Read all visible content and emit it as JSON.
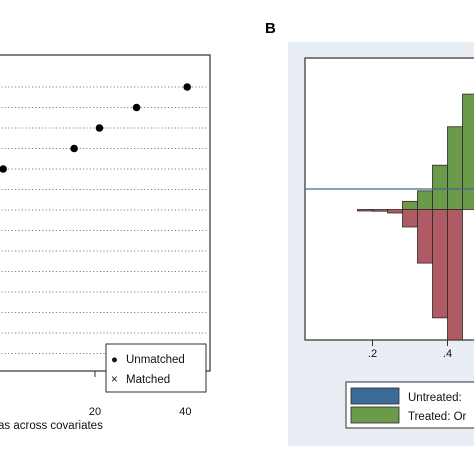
{
  "colors": {
    "outer_bg": "#e8eef3",
    "plot_bg": "#ffffff",
    "frame": "#2f2f2f",
    "dot": "#000000",
    "untreated": "#3d6b99",
    "treated": "#6a9a4a",
    "negative": "#b05a66"
  },
  "chart_data": [
    {
      "panel": "",
      "type": "scatter",
      "title": "",
      "xlabel": "as across covariates",
      "ylabel": "",
      "x_ticks": [
        20,
        40
      ],
      "x_tick_labels": [
        "20",
        "40"
      ],
      "xlim": [
        -1,
        45
      ],
      "rows_visible": 20,
      "grid": "dotted horizontal lines per covariate row",
      "series": [
        {
          "name": "Unmatched",
          "marker": "dot",
          "points": [
            {
              "row": 1,
              "x": 40.4
            },
            {
              "row": 2,
              "x": 29.2
            },
            {
              "row": 3,
              "x": 21.0
            },
            {
              "row": 4,
              "x": 15.4
            },
            {
              "row": 5,
              "x": -0.3
            }
          ]
        },
        {
          "name": "Matched",
          "marker": "x",
          "points": []
        }
      ],
      "legend": {
        "placement": "bottom-right",
        "entries": [
          {
            "marker": "●",
            "label": "Unmatched"
          },
          {
            "marker": "×",
            "label": "Matched"
          }
        ]
      }
    },
    {
      "panel": "B",
      "type": "bar",
      "title": "",
      "xlabel": "",
      "ylabel": "",
      "x_ticks": [
        0.2,
        0.4
      ],
      "x_tick_labels": [
        ".2",
        ".4"
      ],
      "xlim": [
        0.02,
        0.5
      ],
      "ylim": [
        -1.12,
        1.3
      ],
      "bin_width": 0.04,
      "series": [
        {
          "name": "Treated: Or",
          "direction": "up",
          "bars": [
            {
              "x": 0.22,
              "value": 0.0
            },
            {
              "x": 0.26,
              "value": 0.0
            },
            {
              "x": 0.3,
              "value": 0.07
            },
            {
              "x": 0.34,
              "value": 0.16
            },
            {
              "x": 0.38,
              "value": 0.38
            },
            {
              "x": 0.42,
              "value": 0.71
            },
            {
              "x": 0.46,
              "value": 0.99
            }
          ]
        },
        {
          "name": "Untreated:",
          "direction": "down",
          "bars": [
            {
              "x": 0.18,
              "value": 0.01
            },
            {
              "x": 0.22,
              "value": 0.015
            },
            {
              "x": 0.26,
              "value": 0.03
            },
            {
              "x": 0.3,
              "value": 0.15
            },
            {
              "x": 0.34,
              "value": 0.46
            },
            {
              "x": 0.38,
              "value": 0.93
            },
            {
              "x": 0.42,
              "value": 1.12
            }
          ]
        }
      ],
      "legend": {
        "placement": "bottom",
        "entries": [
          {
            "color_key": "untreated",
            "label": "Untreated:"
          },
          {
            "color_key": "treated",
            "label": "Treated: Or"
          }
        ]
      }
    }
  ]
}
